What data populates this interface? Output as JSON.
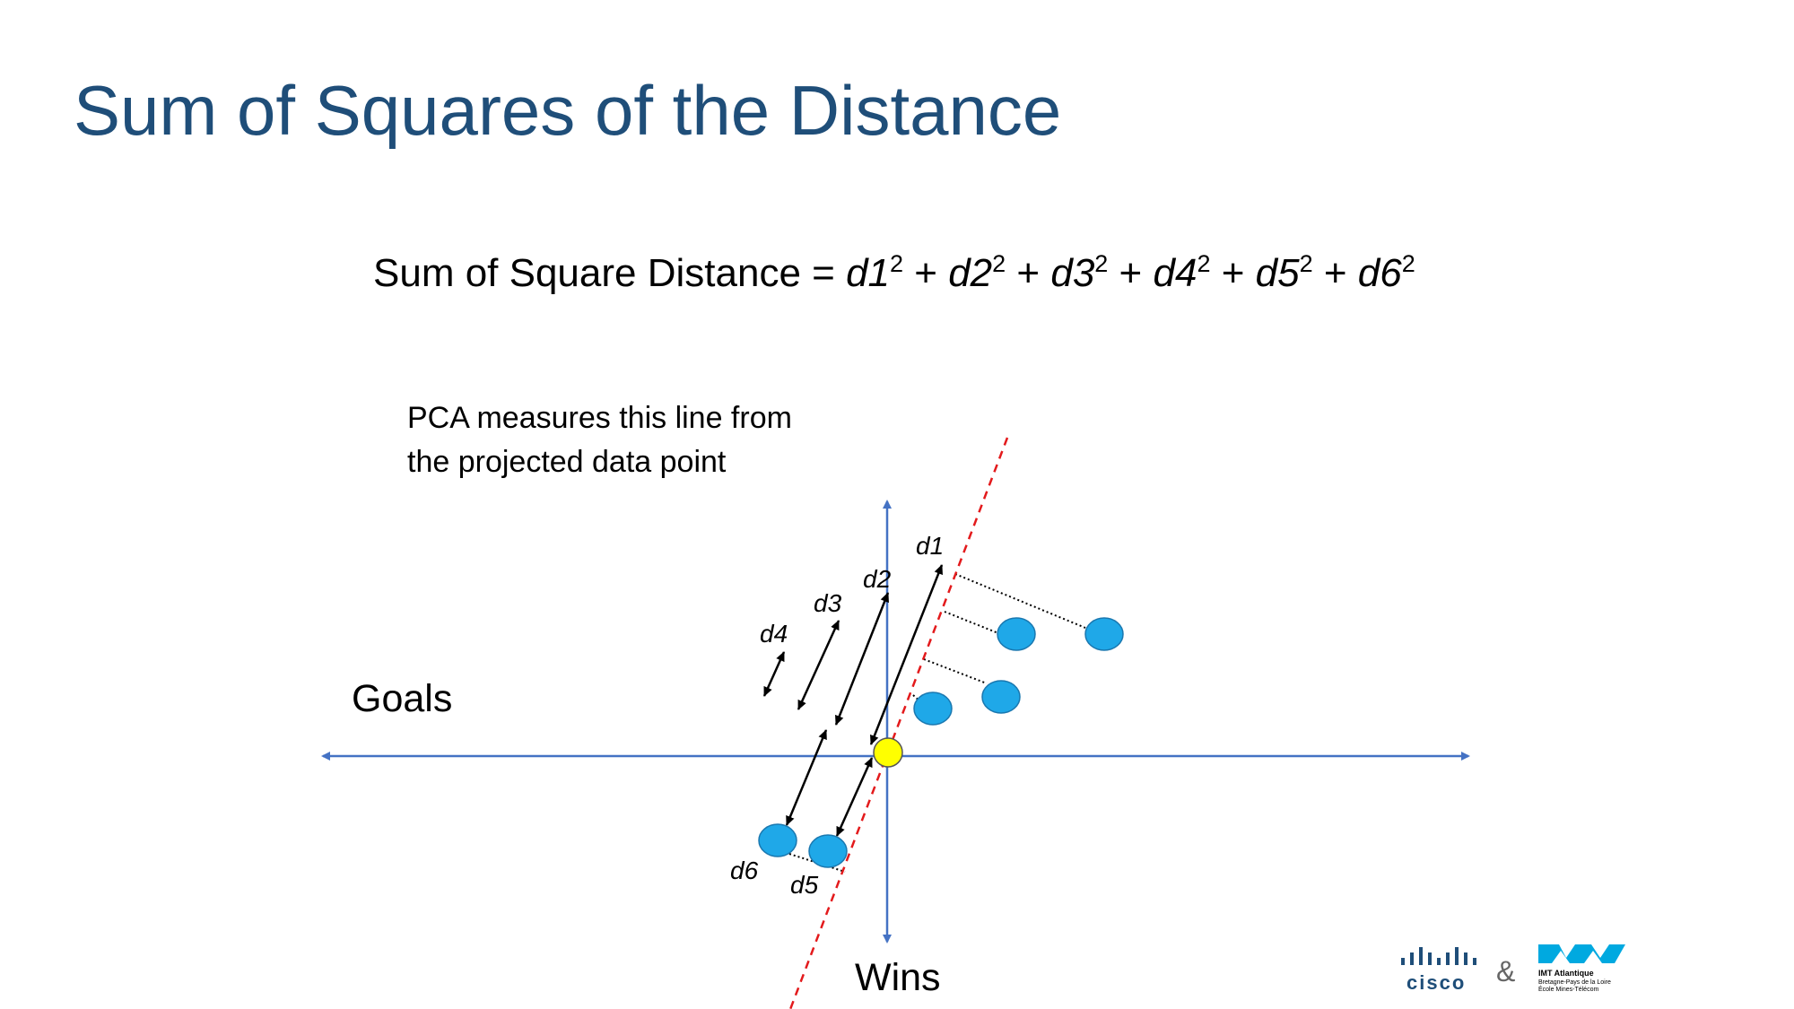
{
  "slide": {
    "title": "Sum of Squares of the Distance",
    "formula": {
      "prefix": "Sum of Square Distance = ",
      "terms": [
        {
          "base": "d1",
          "exp": "2",
          "sep": " + "
        },
        {
          "base": "d2",
          "exp": "2",
          "sep": " + "
        },
        {
          "base": "d3",
          "exp": "2",
          "sep": " + "
        },
        {
          "base": "d4",
          "exp": "2",
          "sep": " + "
        },
        {
          "base": "d5",
          "exp": "2",
          "sep": " + "
        },
        {
          "base": "d6",
          "exp": "2",
          "sep": ""
        }
      ]
    },
    "note_line1": "PCA measures this line from",
    "note_line2": "the projected data point"
  },
  "diagram": {
    "x_axis_label": "Goals",
    "y_axis_label": "Wins",
    "distance_labels": [
      "d1",
      "d2",
      "d3",
      "d4",
      "d5",
      "d6"
    ],
    "colors": {
      "axis": "#4472c4",
      "fit_line": "#e31a1c",
      "data_point": "#1fa8e8",
      "origin_point": "#ffff00",
      "title": "#1f4e79"
    }
  },
  "logos": {
    "cisco": "cisco",
    "amp": "&",
    "imt_name": "IMT Atlantique",
    "imt_sub1": "Bretagne-Pays de la Loire",
    "imt_sub2": "École Mines-Télécom"
  }
}
